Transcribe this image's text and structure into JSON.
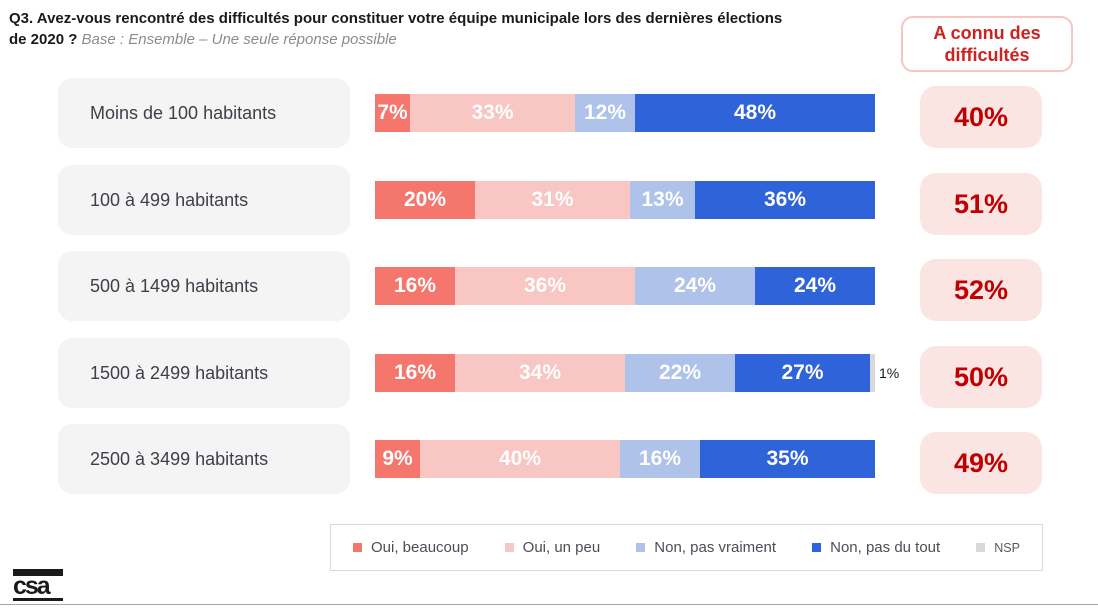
{
  "title": {
    "line1": "Q3. Avez-vous rencontré des difficultés pour constituer votre équipe municipale lors des dernières élections",
    "line2_bold": "de 2020 ?",
    "base": "Base : Ensemble – Une seule réponse possible"
  },
  "header_badge": {
    "line1": "A connu des",
    "line2": "difficultés"
  },
  "chart_data": {
    "type": "bar",
    "orientation": "horizontal-stacked",
    "categories": [
      "Moins de 100 habitants",
      "100 à 499 habitants",
      "500 à 1499 habitants",
      "1500 à 2499 habitants",
      "2500 à 3499 habitants"
    ],
    "series": [
      {
        "name": "Oui, beaucoup",
        "color": "#f4766c",
        "values": [
          7,
          20,
          16,
          16,
          9
        ]
      },
      {
        "name": "Oui, un peu",
        "color": "#f9c7c3",
        "values": [
          33,
          31,
          36,
          34,
          40
        ]
      },
      {
        "name": "Non, pas vraiment",
        "color": "#afc3ea",
        "values": [
          12,
          13,
          24,
          22,
          16
        ]
      },
      {
        "name": "Non, pas du tout",
        "color": "#2f63d9",
        "values": [
          48,
          36,
          24,
          27,
          35
        ]
      },
      {
        "name": "NSP",
        "color": "#d9d9d9",
        "values": [
          0,
          0,
          0,
          1,
          0
        ],
        "label_outside": true
      }
    ],
    "summary_column": {
      "label": "A connu des difficultés",
      "values": [
        40,
        51,
        52,
        50,
        49
      ],
      "unit": "%"
    },
    "xlim": [
      0,
      100
    ],
    "unit": "%",
    "grid": false,
    "legend_position": "bottom",
    "colors": {
      "category_box_bg": "#f4f4f4",
      "badge_bg": "#fbe5e2",
      "badge_text": "#c00000",
      "header_badge_text": "#d02020",
      "header_badge_border": "#f8c5c1"
    }
  },
  "logo": {
    "text": "csa"
  }
}
